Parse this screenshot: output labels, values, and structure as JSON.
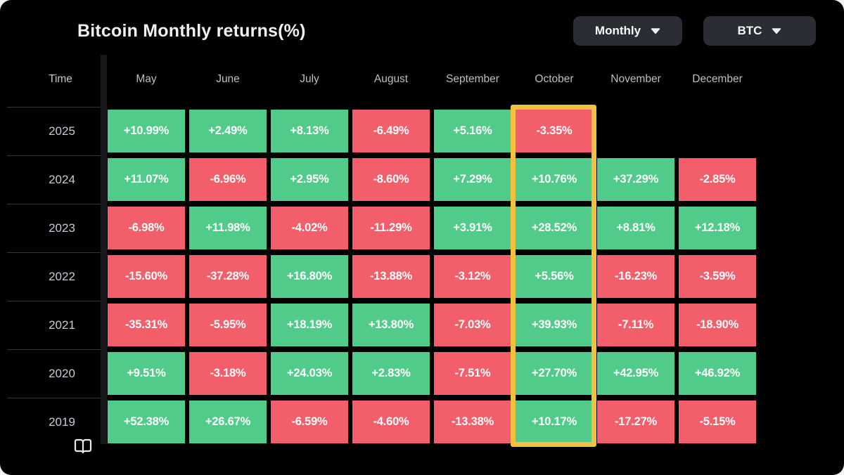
{
  "header": {
    "title": "Bitcoin Monthly returns(%)",
    "period_dropdown": {
      "selected": "Monthly"
    },
    "asset_dropdown": {
      "selected": "BTC"
    }
  },
  "table": {
    "time_label": "Time",
    "months": [
      "May",
      "June",
      "July",
      "August",
      "September",
      "October",
      "November",
      "December"
    ],
    "highlighted_month": "October",
    "rows": [
      {
        "year": "2025",
        "values": [
          "+10.99%",
          "+2.49%",
          "+8.13%",
          "-6.49%",
          "+5.16%",
          "-3.35%",
          null,
          null
        ]
      },
      {
        "year": "2024",
        "values": [
          "+11.07%",
          "-6.96%",
          "+2.95%",
          "-8.60%",
          "+7.29%",
          "+10.76%",
          "+37.29%",
          "-2.85%"
        ]
      },
      {
        "year": "2023",
        "values": [
          "-6.98%",
          "+11.98%",
          "-4.02%",
          "-11.29%",
          "+3.91%",
          "+28.52%",
          "+8.81%",
          "+12.18%"
        ]
      },
      {
        "year": "2022",
        "values": [
          "-15.60%",
          "-37.28%",
          "+16.80%",
          "-13.88%",
          "-3.12%",
          "+5.56%",
          "-16.23%",
          "-3.59%"
        ]
      },
      {
        "year": "2021",
        "values": [
          "-35.31%",
          "-5.95%",
          "+18.19%",
          "+13.80%",
          "-7.03%",
          "+39.93%",
          "-7.11%",
          "-18.90%"
        ]
      },
      {
        "year": "2020",
        "values": [
          "+9.51%",
          "-3.18%",
          "+24.03%",
          "+2.83%",
          "-7.51%",
          "+27.70%",
          "+42.95%",
          "+46.92%"
        ]
      },
      {
        "year": "2019",
        "values": [
          "+52.38%",
          "+26.67%",
          "-6.59%",
          "-4.60%",
          "-13.38%",
          "+10.17%",
          "-17.27%",
          "-5.15%"
        ]
      }
    ]
  },
  "colors": {
    "positive": "#51cb89",
    "negative": "#f25f6b",
    "highlight": "#f2c23e",
    "card_background": "#000000",
    "dropdown_background": "#2a2d34"
  },
  "icons": {
    "period_caret": "chevron-down-icon",
    "asset_caret": "chevron-down-icon",
    "book": "open-book-icon"
  },
  "chart_data": {
    "type": "heatmap",
    "title": "Bitcoin Monthly returns(%)",
    "unit": "%",
    "x_categories": [
      "May",
      "June",
      "July",
      "August",
      "September",
      "October",
      "November",
      "December"
    ],
    "y_categories": [
      "2025",
      "2024",
      "2023",
      "2022",
      "2021",
      "2020",
      "2019"
    ],
    "series": [
      {
        "name": "2025",
        "values": [
          10.99,
          2.49,
          8.13,
          -6.49,
          5.16,
          -3.35,
          null,
          null
        ]
      },
      {
        "name": "2024",
        "values": [
          11.07,
          -6.96,
          2.95,
          -8.6,
          7.29,
          10.76,
          37.29,
          -2.85
        ]
      },
      {
        "name": "2023",
        "values": [
          -6.98,
          11.98,
          -4.02,
          -11.29,
          3.91,
          28.52,
          8.81,
          12.18
        ]
      },
      {
        "name": "2022",
        "values": [
          -15.6,
          -37.28,
          16.8,
          -13.88,
          -3.12,
          5.56,
          -16.23,
          -3.59
        ]
      },
      {
        "name": "2021",
        "values": [
          -35.31,
          -5.95,
          18.19,
          13.8,
          -7.03,
          39.93,
          -7.11,
          -18.9
        ]
      },
      {
        "name": "2020",
        "values": [
          9.51,
          -3.18,
          24.03,
          2.83,
          -7.51,
          27.7,
          42.95,
          46.92
        ]
      },
      {
        "name": "2019",
        "values": [
          52.38,
          26.67,
          -6.59,
          -4.6,
          -13.38,
          10.17,
          -17.27,
          -5.15
        ]
      }
    ],
    "color_coding": "green positive, red negative",
    "highlighted_column": "October",
    "legend": "none",
    "grid": "off"
  }
}
